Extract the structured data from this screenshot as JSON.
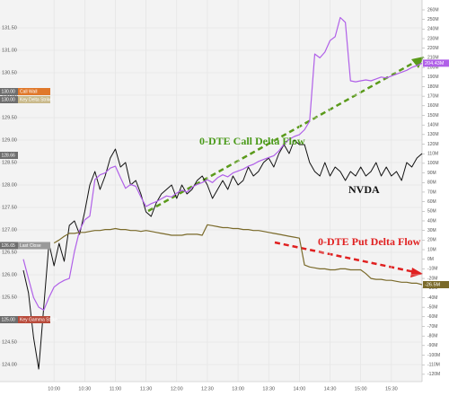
{
  "chart_data": {
    "type": "line",
    "x": [
      "09:30",
      "09:35",
      "09:40",
      "09:45",
      "09:50",
      "09:55",
      "10:00",
      "10:05",
      "10:10",
      "10:15",
      "10:20",
      "10:25",
      "10:30",
      "10:35",
      "10:40",
      "10:45",
      "10:50",
      "10:55",
      "11:00",
      "11:05",
      "11:10",
      "11:15",
      "11:20",
      "11:25",
      "11:30",
      "11:35",
      "11:40",
      "11:45",
      "11:50",
      "11:55",
      "12:00",
      "12:05",
      "12:10",
      "12:15",
      "12:20",
      "12:25",
      "12:30",
      "12:35",
      "12:40",
      "12:45",
      "12:50",
      "12:55",
      "13:00",
      "13:05",
      "13:10",
      "13:15",
      "13:20",
      "13:25",
      "13:30",
      "13:35",
      "13:40",
      "13:45",
      "13:50",
      "13:55",
      "14:00",
      "14:05",
      "14:10",
      "14:15",
      "14:20",
      "14:25",
      "14:30",
      "14:35",
      "14:40",
      "14:45",
      "14:50",
      "14:55",
      "15:00",
      "15:05",
      "15:10",
      "15:15",
      "15:20",
      "15:25",
      "15:30",
      "15:35",
      "15:40",
      "15:45",
      "15:50",
      "15:55",
      "16:00"
    ],
    "xlim": [
      "09:30",
      "16:00"
    ],
    "xticks": [
      "10:00",
      "10:30",
      "11:00",
      "11:30",
      "12:00",
      "12:30",
      "13:00",
      "13:30",
      "14:00",
      "14:30",
      "15:00",
      "15:30"
    ],
    "ylim": [
      123.62,
      132.12
    ],
    "yticks": [
      {
        "value": 124,
        "label": "124.00"
      },
      {
        "value": 124.5,
        "label": "124.50"
      },
      {
        "value": 125,
        "label": "125.00"
      },
      {
        "value": 125.5,
        "label": "125.50"
      },
      {
        "value": 126,
        "label": "126.00"
      },
      {
        "value": 126.5,
        "label": "126.50"
      },
      {
        "value": 127,
        "label": "127.00"
      },
      {
        "value": 127.5,
        "label": "127.50"
      },
      {
        "value": 128,
        "label": "128.00"
      },
      {
        "value": 128.5,
        "label": "128.50"
      },
      {
        "value": 129,
        "label": "129.00"
      },
      {
        "value": 129.5,
        "label": "129.50"
      },
      {
        "value": 130,
        "label": "130.00"
      },
      {
        "value": 130.5,
        "label": "130.50"
      },
      {
        "value": 131,
        "label": "131.00"
      },
      {
        "value": 131.5,
        "label": "131.50"
      }
    ],
    "y2lim": [
      -127.6,
      270.3
    ],
    "y2ticks": [
      {
        "value": 260,
        "label": "260M"
      },
      {
        "value": 250,
        "label": "250M"
      },
      {
        "value": 240,
        "label": "240M"
      },
      {
        "value": 230,
        "label": "230M"
      },
      {
        "value": 220,
        "label": "220M"
      },
      {
        "value": 210,
        "label": "210M"
      },
      {
        "value": 200,
        "label": "200M"
      },
      {
        "value": 190,
        "label": "190M"
      },
      {
        "value": 180,
        "label": "180M"
      },
      {
        "value": 170,
        "label": "170M"
      },
      {
        "value": 160,
        "label": "160M"
      },
      {
        "value": 150,
        "label": "150M"
      },
      {
        "value": 140,
        "label": "140M"
      },
      {
        "value": 130,
        "label": "130M"
      },
      {
        "value": 120,
        "label": "120M"
      },
      {
        "value": 110,
        "label": "110M"
      },
      {
        "value": 100,
        "label": "100M"
      },
      {
        "value": 90,
        "label": "90M"
      },
      {
        "value": 80,
        "label": "80M"
      },
      {
        "value": 70,
        "label": "70M"
      },
      {
        "value": 60,
        "label": "60M"
      },
      {
        "value": 50,
        "label": "50M"
      },
      {
        "value": 40,
        "label": "40M"
      },
      {
        "value": 30,
        "label": "30M"
      },
      {
        "value": 20,
        "label": "20M"
      },
      {
        "value": 10,
        "label": "10M"
      },
      {
        "value": 0,
        "label": "0M"
      },
      {
        "value": -10,
        "label": "-10M"
      },
      {
        "value": -20,
        "label": "-20M"
      },
      {
        "value": -30,
        "label": "-30M"
      },
      {
        "value": -40,
        "label": "-40M"
      },
      {
        "value": -50,
        "label": "-50M"
      },
      {
        "value": -60,
        "label": "-60M"
      },
      {
        "value": -70,
        "label": "-70M"
      },
      {
        "value": -80,
        "label": "-80M"
      },
      {
        "value": -90,
        "label": "-90M"
      },
      {
        "value": -100,
        "label": "-100M"
      },
      {
        "value": -110,
        "label": "-110M"
      },
      {
        "value": -120,
        "label": "-120M"
      }
    ],
    "grid": true,
    "series": [
      {
        "name": "NVDA",
        "color": "#111111",
        "values": [
          126.1,
          125.6,
          124.6,
          123.9,
          125.3,
          126.7,
          126.2,
          126.7,
          126.3,
          127.1,
          127.2,
          126.9,
          127.4,
          128.0,
          128.3,
          127.9,
          128.2,
          128.6,
          128.8,
          128.4,
          128.5,
          128.0,
          128.1,
          127.8,
          127.4,
          127.3,
          127.6,
          127.8,
          127.9,
          128.0,
          127.7,
          128.0,
          127.8,
          127.9,
          128.1,
          128.2,
          128.0,
          127.7,
          127.9,
          128.1,
          127.9,
          128.2,
          128.0,
          128.1,
          128.4,
          128.2,
          128.3,
          128.5,
          128.6,
          128.4,
          128.7,
          128.9,
          128.7,
          129.0,
          128.9,
          128.9,
          128.5,
          128.3,
          128.2,
          128.5,
          128.2,
          128.4,
          128.3,
          128.1,
          128.3,
          128.2,
          128.4,
          128.2,
          128.3,
          128.5,
          128.2,
          128.4,
          128.2,
          128.3,
          128.1,
          128.5,
          128.4,
          128.6,
          128.7
        ]
      },
      {
        "name": "0-DTE Call Delta Flow",
        "color": "#b060e8",
        "axis": "y2",
        "values": [
          0,
          -20,
          -40,
          -50,
          -53,
          -40,
          -29,
          -25,
          -22,
          -20,
          8,
          30,
          41,
          45,
          83,
          88,
          90,
          95,
          97,
          85,
          74,
          78,
          76,
          65,
          55,
          58,
          60,
          63,
          66,
          65,
          69,
          72,
          70,
          75,
          78,
          80,
          83,
          80,
          85,
          88,
          86,
          90,
          92,
          94,
          97,
          99,
          102,
          104,
          106,
          108,
          113,
          120,
          125,
          128,
          130,
          135,
          144,
          214,
          210,
          216,
          228,
          232,
          252,
          247,
          186,
          185,
          186,
          187,
          186,
          188,
          190,
          189,
          191,
          193,
          195,
          197,
          200,
          202,
          204.43
        ],
        "value_labels": [
          null,
          null,
          null,
          null,
          null,
          null,
          null,
          null,
          null,
          null,
          null,
          null,
          null,
          null,
          null,
          null,
          null,
          null,
          null,
          null,
          null,
          null,
          null,
          null,
          null,
          null,
          null,
          null,
          null,
          null,
          null,
          null,
          null,
          null,
          null,
          null,
          null,
          null,
          null,
          null,
          null,
          null,
          null,
          null,
          null,
          null,
          null,
          null,
          null,
          null,
          null,
          null,
          null,
          null,
          null,
          null,
          null,
          null,
          null,
          null,
          null,
          null,
          null,
          null,
          null,
          null,
          null,
          null,
          null,
          null,
          null,
          null,
          null,
          null,
          null,
          null,
          null,
          null,
          "204.43M"
        ]
      },
      {
        "name": "0-DTE Put Delta Flow",
        "color": "#7a6a2a",
        "axis": "y2",
        "values": [
          null,
          null,
          null,
          null,
          null,
          null,
          17,
          20,
          24,
          27,
          27,
          28,
          28,
          29,
          30,
          30,
          31,
          31,
          32,
          31,
          31,
          30,
          30,
          29,
          30,
          29,
          28,
          27,
          26,
          25,
          25,
          25,
          26,
          26,
          26,
          25,
          36,
          35,
          34,
          33,
          33,
          32,
          32,
          31,
          31,
          30,
          30,
          29,
          28,
          27,
          26,
          25,
          24,
          23,
          22,
          -6,
          -8,
          -9,
          -10,
          -10,
          -11,
          -11,
          -10,
          -10,
          -11,
          -11,
          -11,
          -15,
          -20,
          -21,
          -21,
          -22,
          -22,
          -23,
          -24,
          -24,
          -25,
          -25,
          -26.5
        ],
        "value_labels": [
          null,
          null,
          null,
          null,
          null,
          null,
          null,
          null,
          null,
          null,
          null,
          null,
          null,
          null,
          null,
          null,
          null,
          null,
          null,
          null,
          null,
          null,
          null,
          null,
          null,
          null,
          null,
          null,
          null,
          null,
          null,
          null,
          null,
          null,
          null,
          null,
          null,
          null,
          null,
          null,
          null,
          null,
          null,
          null,
          null,
          null,
          null,
          null,
          null,
          null,
          null,
          null,
          null,
          null,
          null,
          null,
          null,
          null,
          null,
          null,
          null,
          null,
          null,
          null,
          null,
          null,
          null,
          null,
          null,
          null,
          null,
          null,
          null,
          null,
          null,
          null,
          null,
          null,
          "-26.5M"
        ]
      }
    ],
    "levels": [
      {
        "value": 130,
        "label": "130.00",
        "name": "Call Wall",
        "color": "#e0782a"
      },
      {
        "value": 130,
        "label": "130.00",
        "name": "Key Delta Strike",
        "color": "#c9b98a"
      },
      {
        "value": 128.66,
        "label": "128.66",
        "color": "#8a8a8a"
      },
      {
        "value": 126.65,
        "label": "126.65",
        "name": "Last Close",
        "color": "#9a9a9a"
      },
      {
        "value": 125,
        "label": "125.00",
        "name": "Key Gamma Strike",
        "color": "#b84a3a"
      }
    ],
    "annotations": [
      "0-DTE Call Delta Flow",
      "NVDA",
      "0-DTE Put Delta Flow"
    ]
  }
}
